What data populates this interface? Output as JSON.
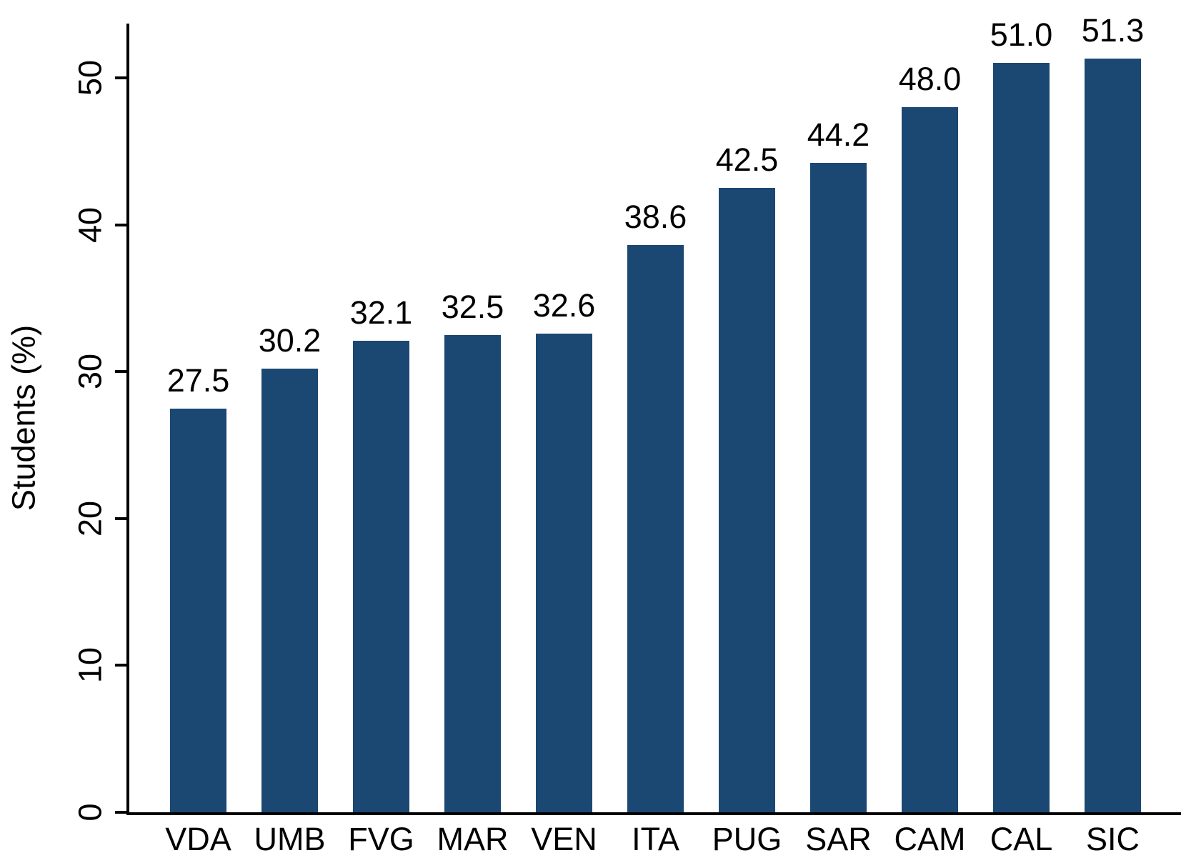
{
  "chart_data": {
    "type": "bar",
    "categories": [
      "VDA",
      "UMB",
      "FVG",
      "MAR",
      "VEN",
      "ITA",
      "PUG",
      "SAR",
      "CAM",
      "CAL",
      "SIC"
    ],
    "values": [
      27.5,
      30.2,
      32.1,
      32.5,
      32.6,
      38.6,
      42.5,
      44.2,
      48.0,
      51.0,
      51.3
    ],
    "value_labels": [
      "27.5",
      "30.2",
      "32.1",
      "32.5",
      "32.6",
      "38.6",
      "42.5",
      "44.2",
      "48.0",
      "51.0",
      "51.3"
    ],
    "title": "",
    "xlabel": "",
    "ylabel": "Students (%)",
    "ylim": [
      0,
      53.7
    ],
    "yticks": [
      0,
      10,
      20,
      30,
      40,
      50
    ],
    "ytick_labels": [
      "0",
      "10",
      "20",
      "30",
      "40",
      "50"
    ],
    "grid": false,
    "legend": "none",
    "bar_color": "#1b4872",
    "axis_color": "#000000",
    "text_color": "#000000",
    "background_color": "#ffffff"
  }
}
